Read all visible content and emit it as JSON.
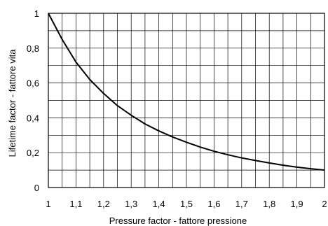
{
  "chart_data": {
    "type": "line",
    "title": "",
    "xlabel": "Pressure factor - fattore pressione",
    "ylabel": "Lifetime factor - fattore vita",
    "xlim": [
      1,
      2
    ],
    "ylim": [
      0,
      1
    ],
    "grid": true,
    "x_ticks": [
      "1",
      "1,1",
      "1,2",
      "1,3",
      "1,4",
      "1,5",
      "1,6",
      "1,7",
      "1,8",
      "1,9",
      "2"
    ],
    "y_ticks": [
      "0",
      "0,2",
      "0,4",
      "0,6",
      "0,8",
      "1"
    ],
    "series": [
      {
        "color": "#000000",
        "x": [
          1.0,
          1.05,
          1.1,
          1.15,
          1.2,
          1.25,
          1.3,
          1.35,
          1.4,
          1.45,
          1.5,
          1.55,
          1.6,
          1.65,
          1.7,
          1.75,
          1.8,
          1.85,
          1.9,
          1.95,
          2.0
        ],
        "y": [
          1.0,
          0.85,
          0.72,
          0.62,
          0.54,
          0.47,
          0.415,
          0.365,
          0.325,
          0.29,
          0.26,
          0.232,
          0.208,
          0.188,
          0.17,
          0.155,
          0.141,
          0.128,
          0.117,
          0.108,
          0.1
        ]
      }
    ]
  }
}
